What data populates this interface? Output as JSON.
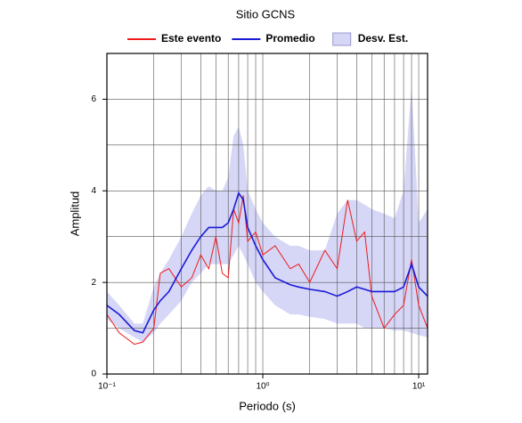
{
  "chart_data": {
    "type": "line",
    "title": "Sitio GCNS",
    "xlabel": "Periodo (s)",
    "ylabel": "Amplitud",
    "xscale": "log",
    "grid": true,
    "xlim": [
      0.1,
      11.4
    ],
    "ylim": [
      0,
      7
    ],
    "xticks": [
      {
        "value": 0.1,
        "label": "10⁻¹"
      },
      {
        "value": 1,
        "label": "10⁰"
      },
      {
        "value": 10,
        "label": "10¹"
      }
    ],
    "yticks": [
      0,
      2,
      4,
      6
    ],
    "xgrid": [
      0.2,
      0.3,
      0.4,
      0.5,
      0.6,
      0.7,
      0.8,
      0.9,
      2,
      3,
      4,
      5,
      6,
      7,
      8,
      9
    ],
    "ygrid": [
      1,
      3,
      5,
      7
    ],
    "x": [
      0.1,
      0.12,
      0.15,
      0.17,
      0.2,
      0.22,
      0.25,
      0.3,
      0.35,
      0.4,
      0.45,
      0.5,
      0.55,
      0.6,
      0.65,
      0.7,
      0.75,
      0.8,
      0.9,
      1.0,
      1.2,
      1.5,
      1.7,
      2,
      2.5,
      3,
      3.5,
      4,
      4.5,
      5,
      6,
      7,
      8,
      9,
      10,
      11.4
    ],
    "band": {
      "name": "Desv. Est.",
      "color": "#d6d6f7",
      "upper": [
        1.8,
        1.5,
        1.1,
        1.1,
        1.9,
        2.2,
        2.5,
        3.0,
        3.5,
        3.9,
        4.1,
        4.0,
        4.0,
        4.3,
        5.2,
        5.4,
        5.0,
        4.0,
        3.6,
        3.3,
        3.0,
        2.8,
        2.8,
        2.7,
        2.7,
        3.5,
        3.8,
        3.8,
        3.7,
        3.6,
        3.5,
        3.4,
        4.0,
        6.3,
        3.3,
        3.6
      ],
      "lower": [
        1.2,
        1.0,
        0.8,
        0.7,
        0.9,
        1.1,
        1.3,
        1.6,
        2.0,
        2.2,
        2.4,
        2.4,
        2.4,
        2.4,
        2.6,
        2.8,
        2.6,
        2.4,
        2.0,
        1.8,
        1.5,
        1.3,
        1.3,
        1.25,
        1.2,
        1.1,
        1.1,
        1.1,
        1.0,
        1.0,
        1.0,
        0.95,
        0.95,
        0.9,
        0.85,
        0.8
      ]
    },
    "series": [
      {
        "name": "Este evento",
        "color": "#ee1c1c",
        "values": [
          1.3,
          0.9,
          0.65,
          0.7,
          1.0,
          2.2,
          2.3,
          1.9,
          2.1,
          2.6,
          2.3,
          3.0,
          2.2,
          2.1,
          3.6,
          3.3,
          3.9,
          2.9,
          3.1,
          2.6,
          2.8,
          2.3,
          2.4,
          2.0,
          2.7,
          2.3,
          3.8,
          2.9,
          3.1,
          1.7,
          1.0,
          1.3,
          1.5,
          2.5,
          1.5,
          1.0
        ]
      },
      {
        "name": "Promedio",
        "color": "#1a1ad8",
        "values": [
          1.5,
          1.3,
          0.95,
          0.9,
          1.4,
          1.6,
          1.8,
          2.3,
          2.7,
          3.0,
          3.2,
          3.2,
          3.2,
          3.3,
          3.6,
          3.95,
          3.8,
          3.2,
          2.8,
          2.5,
          2.1,
          1.95,
          1.9,
          1.85,
          1.8,
          1.7,
          1.8,
          1.9,
          1.85,
          1.8,
          1.8,
          1.8,
          1.9,
          2.4,
          1.9,
          1.7
        ]
      }
    ]
  }
}
